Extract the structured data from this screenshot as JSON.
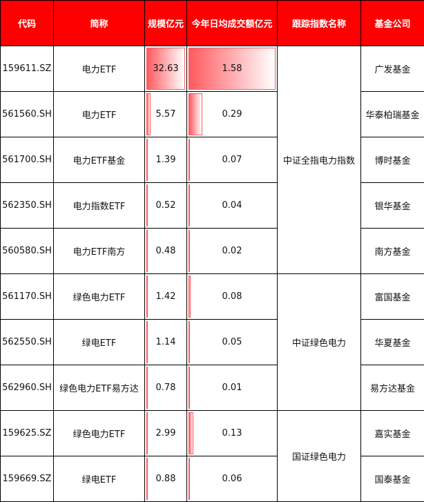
{
  "headers": [
    "代码",
    "简称",
    "规模亿元",
    "今年日均成交额亿元",
    "跟踪指数名称",
    "基金公司"
  ],
  "colors": {
    "header": "#ff0000",
    "bar": "#ff5a5f"
  },
  "rows": [
    {
      "code": "159611.SZ",
      "name": "电力ETF",
      "scale": 32.63,
      "turnover": 1.58,
      "company": "广发基金"
    },
    {
      "code": "561560.SH",
      "name": "电力ETF",
      "scale": 5.57,
      "turnover": 0.29,
      "company": "华泰柏瑞基金"
    },
    {
      "code": "561700.SH",
      "name": "电力ETF基金",
      "scale": 1.39,
      "turnover": 0.07,
      "company": "博时基金"
    },
    {
      "code": "562350.SH",
      "name": "电力指数ETF",
      "scale": 0.52,
      "turnover": 0.04,
      "company": "银华基金"
    },
    {
      "code": "560580.SH",
      "name": "电力ETF南方",
      "scale": 0.48,
      "turnover": 0.02,
      "company": "南方基金"
    },
    {
      "code": "561170.SH",
      "name": "绿色电力ETF",
      "scale": 1.42,
      "turnover": 0.08,
      "company": "富国基金"
    },
    {
      "code": "562550.SH",
      "name": "绿电ETF",
      "scale": 1.14,
      "turnover": 0.05,
      "company": "华夏基金"
    },
    {
      "code": "562960.SH",
      "name": "绿色电力ETF易方达",
      "scale": 0.78,
      "turnover": 0.01,
      "company": "易方达基金"
    },
    {
      "code": "159625.SZ",
      "name": "绿色电力ETF",
      "scale": 2.99,
      "turnover": 0.13,
      "company": "嘉实基金"
    },
    {
      "code": "159669.SZ",
      "name": "绿电ETF",
      "scale": 0.88,
      "turnover": 0.06,
      "company": "国泰基金"
    }
  ],
  "indices": [
    {
      "name": "中证全指电力指数",
      "span": 5
    },
    {
      "name": "中证绿色电力",
      "span": 3
    },
    {
      "name": "国证绿色电力",
      "span": 2
    }
  ]
}
